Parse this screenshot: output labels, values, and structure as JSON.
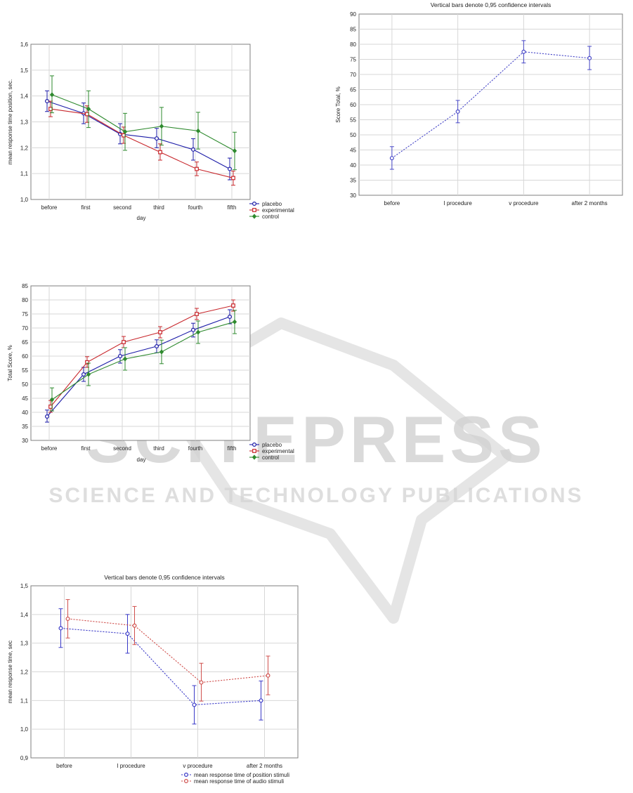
{
  "watermark": {
    "brand": "SCITEPRESS",
    "tagline": "SCIENCE AND TECHNOLOGY PUBLICATIONS",
    "color": "#c9c9c9"
  },
  "chart_data": [
    {
      "type": "line",
      "title": "",
      "xlabel": "day",
      "ylabel": "mean response time position, sec.",
      "categories": [
        "before",
        "first",
        "second",
        "third",
        "fourth",
        "fifth"
      ],
      "ylim": [
        1.0,
        1.6
      ],
      "yticks": [
        "1,0",
        "1,1",
        "1,2",
        "1,3",
        "1,4",
        "1,5",
        "1,6"
      ],
      "legend_position": "bottom-right",
      "grid": true,
      "series": [
        {
          "name": "placebo",
          "color": "#1c1ca8",
          "marker": "circle",
          "dashed": false,
          "values": [
            1.38,
            1.333,
            1.253,
            1.236,
            1.193,
            1.118
          ],
          "ci_low": [
            1.34,
            1.293,
            1.215,
            1.2,
            1.152,
            1.076
          ],
          "ci_high": [
            1.42,
            1.373,
            1.293,
            1.275,
            1.235,
            1.16
          ]
        },
        {
          "name": "experimental",
          "color": "#c8282d",
          "marker": "square",
          "dashed": false,
          "values": [
            1.35,
            1.33,
            1.248,
            1.183,
            1.118,
            1.083
          ],
          "ci_low": [
            1.32,
            1.298,
            1.217,
            1.152,
            1.092,
            1.055
          ],
          "ci_high": [
            1.38,
            1.362,
            1.28,
            1.215,
            1.145,
            1.11
          ]
        },
        {
          "name": "control",
          "color": "#2e8a2e",
          "marker": "diamond",
          "dashed": false,
          "values": [
            1.405,
            1.35,
            1.262,
            1.283,
            1.265,
            1.188
          ],
          "ci_low": [
            1.335,
            1.278,
            1.19,
            1.21,
            1.195,
            1.115
          ],
          "ci_high": [
            1.478,
            1.42,
            1.333,
            1.356,
            1.337,
            1.26
          ]
        }
      ]
    },
    {
      "type": "line",
      "title": "Vertical bars denote 0,95 confidence intervals",
      "xlabel": "",
      "ylabel": "Score Total, %",
      "categories": [
        "before",
        "I procedure",
        "v procedure",
        "after 2 months"
      ],
      "ylim": [
        30,
        90
      ],
      "yticks": [
        "30",
        "35",
        "40",
        "45",
        "50",
        "55",
        "60",
        "65",
        "70",
        "75",
        "80",
        "85",
        "90"
      ],
      "legend_position": "none",
      "grid": true,
      "series": [
        {
          "name": "",
          "color": "#4848c8",
          "marker": "circle",
          "dashed": true,
          "values": [
            42.3,
            57.7,
            77.5,
            75.4
          ],
          "ci_low": [
            38.6,
            54.0,
            73.8,
            71.6
          ],
          "ci_high": [
            46.1,
            61.4,
            81.2,
            79.3
          ]
        }
      ]
    },
    {
      "type": "line",
      "title": "",
      "xlabel": "day",
      "ylabel": "Total Score, %",
      "categories": [
        "before",
        "first",
        "second",
        "third",
        "fourth",
        "fifth"
      ],
      "ylim": [
        30,
        85
      ],
      "yticks": [
        "30",
        "35",
        "40",
        "45",
        "50",
        "55",
        "60",
        "65",
        "70",
        "75",
        "80",
        "85"
      ],
      "legend_position": "bottom-right",
      "grid": true,
      "series": [
        {
          "name": "placebo",
          "color": "#1c1ca8",
          "marker": "circle",
          "dashed": false,
          "values": [
            38.5,
            53.5,
            60.0,
            63.5,
            69.3,
            74.0
          ],
          "ci_low": [
            36.5,
            51.0,
            57.5,
            61.2,
            66.8,
            71.5
          ],
          "ci_high": [
            40.8,
            56.0,
            62.3,
            65.8,
            71.7,
            76.5
          ]
        },
        {
          "name": "experimental",
          "color": "#c8282d",
          "marker": "square",
          "dashed": false,
          "values": [
            42.0,
            57.8,
            65.0,
            68.5,
            75.0,
            78.0
          ],
          "ci_low": [
            40.0,
            56.0,
            63.0,
            66.5,
            73.0,
            76.0
          ],
          "ci_high": [
            44.2,
            59.8,
            67.0,
            70.5,
            77.0,
            80.0
          ]
        },
        {
          "name": "control",
          "color": "#2e8a2e",
          "marker": "diamond",
          "dashed": false,
          "values": [
            44.5,
            53.5,
            59.0,
            61.5,
            68.5,
            72.2
          ],
          "ci_low": [
            40.5,
            49.5,
            55.0,
            57.3,
            64.5,
            68.0
          ],
          "ci_high": [
            48.7,
            57.5,
            63.0,
            65.7,
            72.5,
            76.3
          ]
        }
      ]
    },
    {
      "type": "line",
      "title": "Vertical bars denote 0,95 confidence intervals",
      "xlabel": "",
      "ylabel": "mean response time, sec",
      "categories": [
        "before",
        "I procedure",
        "v procedure",
        "after 2 months"
      ],
      "ylim": [
        0.9,
        1.5
      ],
      "yticks": [
        "0,9",
        "1,0",
        "1,1",
        "1,2",
        "1,3",
        "1,4",
        "1,5"
      ],
      "legend_position": "bottom-right",
      "grid": true,
      "series": [
        {
          "name": "mean response time of position stimuli",
          "color": "#3a3ac8",
          "marker": "circle",
          "dashed": true,
          "values": [
            1.352,
            1.333,
            1.085,
            1.1
          ],
          "ci_low": [
            1.285,
            1.265,
            1.018,
            1.032
          ],
          "ci_high": [
            1.42,
            1.4,
            1.152,
            1.168
          ]
        },
        {
          "name": "mean response time of audio stimuli",
          "color": "#d0504d",
          "marker": "circle",
          "dashed": true,
          "values": [
            1.385,
            1.361,
            1.163,
            1.187
          ],
          "ci_low": [
            1.318,
            1.295,
            1.098,
            1.12
          ],
          "ci_high": [
            1.452,
            1.428,
            1.23,
            1.255
          ]
        }
      ]
    }
  ]
}
